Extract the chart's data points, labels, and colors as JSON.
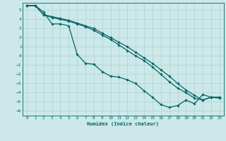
{
  "xlabel": "Humidex (Indice chaleur)",
  "xlim": [
    -0.5,
    23.5
  ],
  "ylim": [
    -6.5,
    5.8
  ],
  "yticks": [
    5,
    4,
    3,
    2,
    1,
    0,
    -1,
    -2,
    -3,
    -4,
    -5,
    -6
  ],
  "xticks": [
    0,
    1,
    2,
    3,
    4,
    5,
    6,
    7,
    8,
    9,
    10,
    11,
    12,
    13,
    14,
    15,
    16,
    17,
    18,
    19,
    20,
    21,
    22,
    23
  ],
  "bg_color": "#cce8e8",
  "grid_color": "#aacccc",
  "line_color": "#006666",
  "line1_x": [
    0,
    1,
    2,
    3,
    4,
    5,
    6,
    7,
    8,
    9,
    10,
    11,
    12,
    13,
    14,
    15,
    16,
    17,
    18,
    19,
    20,
    21,
    22,
    23
  ],
  "line1_y": [
    5.5,
    5.5,
    4.8,
    3.5,
    3.5,
    3.3,
    0.2,
    -0.8,
    -0.9,
    -1.7,
    -2.2,
    -2.3,
    -2.6,
    -3.0,
    -3.8,
    -4.5,
    -5.3,
    -5.6,
    -5.4,
    -4.8,
    -5.2,
    -4.2,
    -4.5,
    -4.6
  ],
  "line2_x": [
    0,
    1,
    2,
    3,
    4,
    5,
    6,
    7,
    8,
    9,
    10,
    11,
    12,
    13,
    14,
    15,
    16,
    17,
    18,
    19,
    20,
    21,
    22,
    23
  ],
  "line2_y": [
    5.5,
    5.5,
    4.5,
    4.2,
    4.0,
    3.8,
    3.5,
    3.2,
    2.8,
    2.3,
    1.8,
    1.2,
    0.6,
    0.0,
    -0.5,
    -1.2,
    -2.0,
    -2.8,
    -3.5,
    -4.0,
    -4.6,
    -4.8,
    -4.5,
    -4.5
  ],
  "line3_x": [
    0,
    1,
    2,
    3,
    4,
    5,
    6,
    7,
    8,
    9,
    10,
    11,
    12,
    13,
    14,
    15,
    16,
    17,
    18,
    19,
    20,
    21,
    22,
    23
  ],
  "line3_y": [
    5.5,
    5.5,
    4.5,
    4.3,
    4.1,
    3.9,
    3.6,
    3.3,
    3.0,
    2.5,
    2.0,
    1.5,
    1.0,
    0.4,
    -0.2,
    -0.8,
    -1.5,
    -2.2,
    -3.0,
    -3.7,
    -4.3,
    -4.8,
    -4.5,
    -4.5
  ]
}
